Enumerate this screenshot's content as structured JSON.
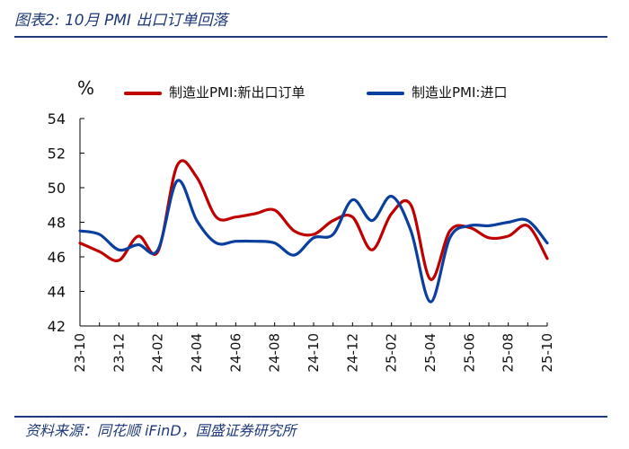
{
  "header": {
    "title": "图表2:  10月 PMI 出口订单回落"
  },
  "footer": {
    "source": "资料来源：同花顺 iFinD，国盛证券研究所"
  },
  "colors": {
    "brand": "#1f3a78",
    "series_red": "#c00000",
    "series_blue": "#0a3f9e"
  },
  "chart_data": {
    "type": "line",
    "title": "",
    "xlabel": "",
    "ylabel": "%",
    "ylim": [
      42,
      54
    ],
    "yticks": [
      42,
      44,
      46,
      48,
      50,
      52,
      54
    ],
    "grid": false,
    "legend": "top",
    "x": [
      "23-10",
      "23-11",
      "23-12",
      "24-01",
      "24-02",
      "24-03",
      "24-04",
      "24-05",
      "24-06",
      "24-07",
      "24-08",
      "24-09",
      "24-10",
      "24-11",
      "24-12",
      "25-01",
      "25-02",
      "25-03",
      "25-04",
      "25-05",
      "25-06",
      "25-07",
      "25-08",
      "25-09",
      "25-10"
    ],
    "xtick_labels": [
      "23-10",
      "23-12",
      "24-02",
      "24-04",
      "24-06",
      "24-08",
      "24-10",
      "24-12",
      "25-02",
      "25-04",
      "25-06",
      "25-08",
      "25-10"
    ],
    "series": [
      {
        "name": "制造业PMI:新出口订单",
        "color": "#c00000",
        "values": [
          46.8,
          46.3,
          45.8,
          47.2,
          46.3,
          51.3,
          50.6,
          48.3,
          48.3,
          48.5,
          48.7,
          47.5,
          47.3,
          48.1,
          48.3,
          46.4,
          48.5,
          49.0,
          44.7,
          47.5,
          47.7,
          47.1,
          47.2,
          47.8,
          45.9
        ]
      },
      {
        "name": "制造业PMI:进口",
        "color": "#0a3f9e",
        "values": [
          47.5,
          47.3,
          46.4,
          46.7,
          46.4,
          50.4,
          48.1,
          46.8,
          46.9,
          46.9,
          46.8,
          46.1,
          47.1,
          47.3,
          49.3,
          48.1,
          49.5,
          47.5,
          43.4,
          47.1,
          47.8,
          47.8,
          48.0,
          48.1,
          46.8
        ]
      }
    ]
  }
}
